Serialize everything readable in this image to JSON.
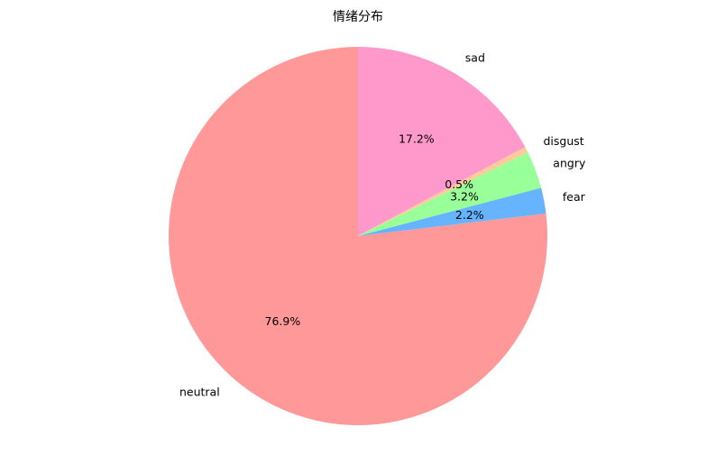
{
  "chart_data": {
    "type": "pie",
    "title": "情绪分布",
    "start_angle_deg": 90,
    "direction": "counterclockwise",
    "slices": [
      {
        "label": "neutral",
        "value": 76.9,
        "pct_label": "76.9%",
        "color": "#ff9999"
      },
      {
        "label": "fear",
        "value": 2.2,
        "pct_label": "2.2%",
        "color": "#66b3ff"
      },
      {
        "label": "angry",
        "value": 3.2,
        "pct_label": "3.2%",
        "color": "#99ff99"
      },
      {
        "label": "disgust",
        "value": 0.5,
        "pct_label": "0.5%",
        "color": "#ffcc99"
      },
      {
        "label": "sad",
        "value": 17.2,
        "pct_label": "17.2%",
        "color": "#ff99cc"
      }
    ]
  }
}
